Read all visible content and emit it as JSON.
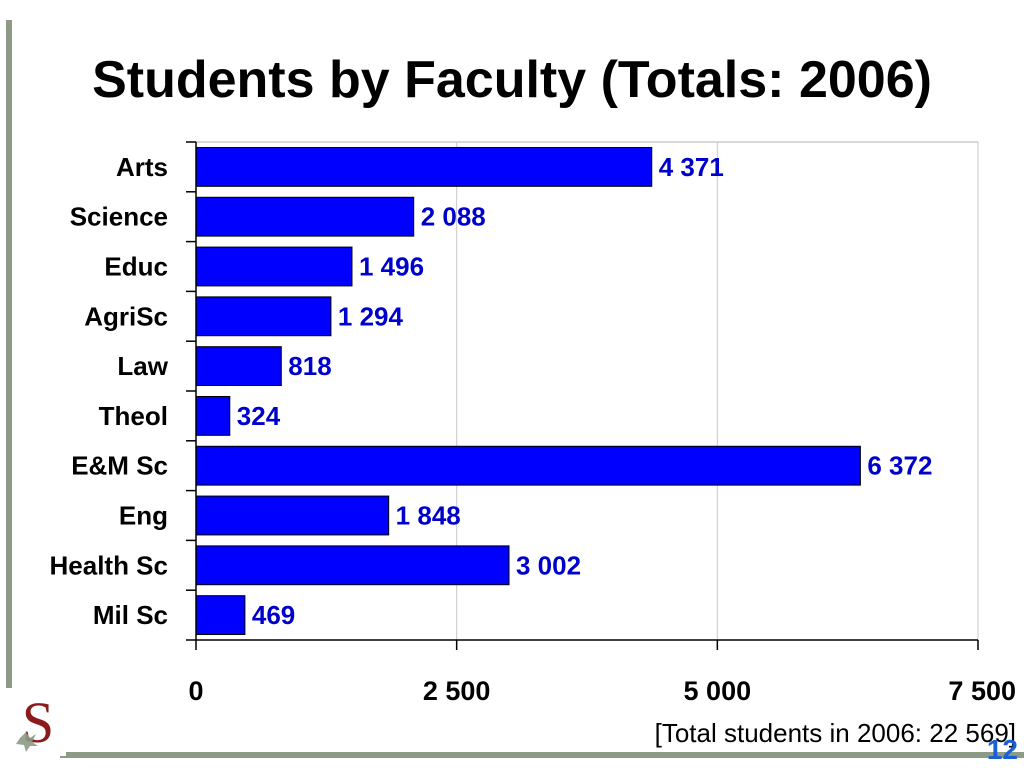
{
  "slide": {
    "title": "Students by Faculty (Totals: 2006)",
    "footnote": "[Total students in 2006: 22 569]",
    "page_number": "12",
    "logo_letter": "S"
  },
  "colors": {
    "bar": "#0000ff",
    "value_label": "#0000cc",
    "accent_rule": "#8c9a86",
    "page_number": "#1a5fd6"
  },
  "chart_data": {
    "type": "bar",
    "orientation": "horizontal",
    "categories": [
      "Arts",
      "Science",
      "Educ",
      "AgriSc",
      "Law",
      "Theol",
      "E&M Sc",
      "Eng",
      "Health Sc",
      "Mil Sc"
    ],
    "values": [
      4371,
      2088,
      1496,
      1294,
      818,
      324,
      6372,
      1848,
      3002,
      469
    ],
    "value_labels": [
      "4 371",
      "2 088",
      "1 496",
      "1 294",
      "818",
      "324",
      "6 372",
      "1 848",
      "3 002",
      "469"
    ],
    "xlim": [
      0,
      7500
    ],
    "xticks": [
      0,
      2500,
      5000,
      7500
    ],
    "xtick_labels": [
      "0",
      "2 500",
      "5 000",
      "7 500"
    ],
    "grid": "vertical"
  }
}
